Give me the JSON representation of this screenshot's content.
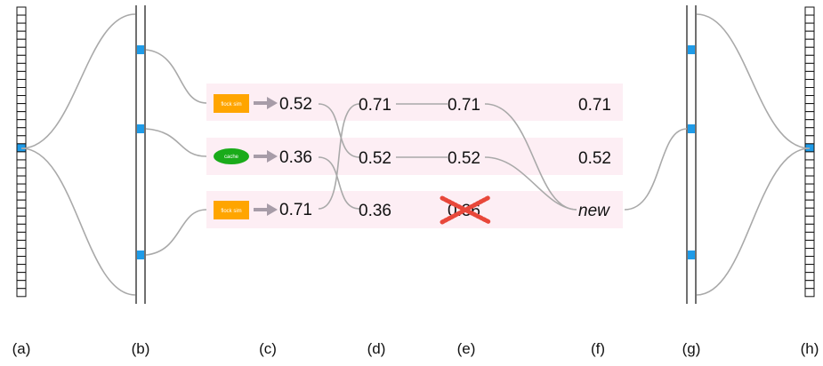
{
  "panel_labels": [
    "(a)",
    "(b)",
    "(c)",
    "(d)",
    "(e)",
    "(f)",
    "(g)",
    "(h)"
  ],
  "rows": [
    {
      "source": "flock sim",
      "source_kind": "flock-sim",
      "c": "0.52",
      "d": "0.71",
      "e": "0.71",
      "f": "0.71"
    },
    {
      "source": "cache",
      "source_kind": "cache",
      "c": "0.36",
      "d": "0.52",
      "e": "0.52",
      "f": "0.52"
    },
    {
      "source": "flock sim",
      "source_kind": "flock-sim",
      "c": "0.71",
      "d": "0.36",
      "e": "0.36",
      "f": "new"
    }
  ],
  "evicted_value": "0.36",
  "new_label": "new",
  "colors": {
    "row_band": "#fdeef4",
    "flock_sim": "#ffa500",
    "cache": "#1aab1a",
    "marker": "#1e9be8",
    "cross": "#e8473a",
    "curve": "#a9a9a9",
    "arrow": "#a79ca8"
  }
}
